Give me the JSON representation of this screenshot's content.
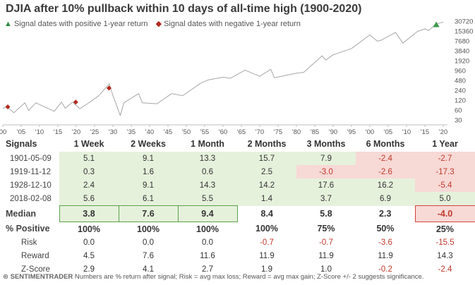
{
  "chart_data": {
    "type": "line",
    "title": "DJIA after 10% pullback within 10 days of all-time high (1900-2020)",
    "legend": {
      "positive": "Signal dates with positive 1-year return",
      "negative": "Signal dates with negative 1-year return"
    },
    "y_scale": "log",
    "y_ticks": [
      30,
      60,
      120,
      240,
      480,
      960,
      1920,
      3840,
      7680,
      15360,
      30720
    ],
    "x_tick_labels": [
      "00",
      "'05",
      "'10",
      "'15",
      "'20",
      "'25",
      "'30",
      "'35",
      "'40",
      "'45",
      "'50",
      "'55",
      "'60",
      "'65",
      "'70",
      "'75",
      "'80",
      "'85",
      "'90",
      "'95",
      "'00",
      "'05",
      "'10",
      "'15",
      "'20"
    ],
    "xlim": [
      1900,
      2020
    ],
    "ylim": [
      30,
      30720
    ],
    "series": [
      {
        "x": [
          1900,
          1901,
          1903,
          1906,
          1907,
          1909,
          1914,
          1916,
          1917,
          1919,
          1921,
          1924,
          1926,
          1928,
          1929,
          1930,
          1932,
          1933,
          1937,
          1938,
          1942,
          1946,
          1949,
          1954,
          1956,
          1960,
          1962,
          1966,
          1970,
          1973,
          1974,
          1980,
          1982,
          1987,
          1988,
          1990,
          1995,
          2000,
          2002,
          2003,
          2007,
          2009,
          2013,
          2015,
          2016,
          2018,
          2020
        ],
        "y": [
          66,
          78,
          50,
          100,
          58,
          100,
          55,
          105,
          68,
          105,
          66,
          110,
          160,
          280,
          381,
          165,
          41,
          100,
          190,
          100,
          93,
          190,
          165,
          400,
          500,
          600,
          560,
          990,
          640,
          1050,
          580,
          800,
          850,
          2700,
          2000,
          2900,
          4500,
          11700,
          7600,
          8000,
          14000,
          6550,
          15000,
          17800,
          16000,
          25000,
          29000
        ]
      }
    ],
    "signals": [
      {
        "date": "1901-05-09",
        "x": 1901.35,
        "y": 75,
        "one_year": "negative"
      },
      {
        "date": "1919-11-12",
        "x": 1919.87,
        "y": 105,
        "one_year": "negative"
      },
      {
        "date": "1928-12-10",
        "x": 1928.94,
        "y": 280,
        "one_year": "negative"
      },
      {
        "date": "2018-02-08",
        "x": 2018.1,
        "y": 24000,
        "one_year": "positive"
      }
    ]
  },
  "table": {
    "headers": [
      "Signals",
      "1 Week",
      "2 Weeks",
      "1 Month",
      "2 Months",
      "3 Months",
      "6 Months",
      "1 Year"
    ],
    "rows": [
      {
        "date": "1901-05-09",
        "values": [
          "5.1",
          "9.1",
          "13.3",
          "15.7",
          "7.9",
          "-2.4",
          "-2.7"
        ]
      },
      {
        "date": "1919-11-12",
        "values": [
          "0.3",
          "1.6",
          "0.6",
          "2.5",
          "-3.0",
          "-2.6",
          "-17.3"
        ]
      },
      {
        "date": "1928-12-10",
        "values": [
          "2.4",
          "9.1",
          "14.3",
          "14.2",
          "17.6",
          "16.2",
          "-5.4"
        ]
      },
      {
        "date": "2018-02-08",
        "values": [
          "5.6",
          "6.1",
          "5.5",
          "1.4",
          "3.7",
          "6.9",
          "5.0"
        ]
      }
    ],
    "median": {
      "label": "Median",
      "values": [
        "3.8",
        "7.6",
        "9.4",
        "8.4",
        "5.8",
        "2.3",
        "-4.0"
      ]
    },
    "pct_positive": {
      "label": "% Positive",
      "values": [
        "100%",
        "100%",
        "100%",
        "100%",
        "75%",
        "50%",
        "25%"
      ]
    },
    "risk": {
      "label": "Risk",
      "values": [
        "0.0",
        "0.0",
        "0.0",
        "-0.7",
        "-0.7",
        "-3.6",
        "-15.5"
      ]
    },
    "reward": {
      "label": "Reward",
      "values": [
        "4.5",
        "7.6",
        "11.6",
        "11.9",
        "11.9",
        "11.9",
        "14.3"
      ]
    },
    "zscore": {
      "label": "Z-Score",
      "values": [
        "2.9",
        "4.1",
        "2.7",
        "1.9",
        "1.0",
        "-0.2",
        "-2.4"
      ]
    }
  },
  "footer": {
    "brand": "SENTIMENTRADER",
    "note": "Numbers are % return after signal; Risk = avg max loss; Reward = avg max gain; Z-Score +/- 2 suggests significance."
  },
  "colors": {
    "line": "#a6a6a6",
    "positive_marker": "#3d9a4b",
    "negative_marker": "#b22a1e",
    "positive_fill": "#e6f1dc",
    "negative_fill": "#f7d9d6"
  }
}
